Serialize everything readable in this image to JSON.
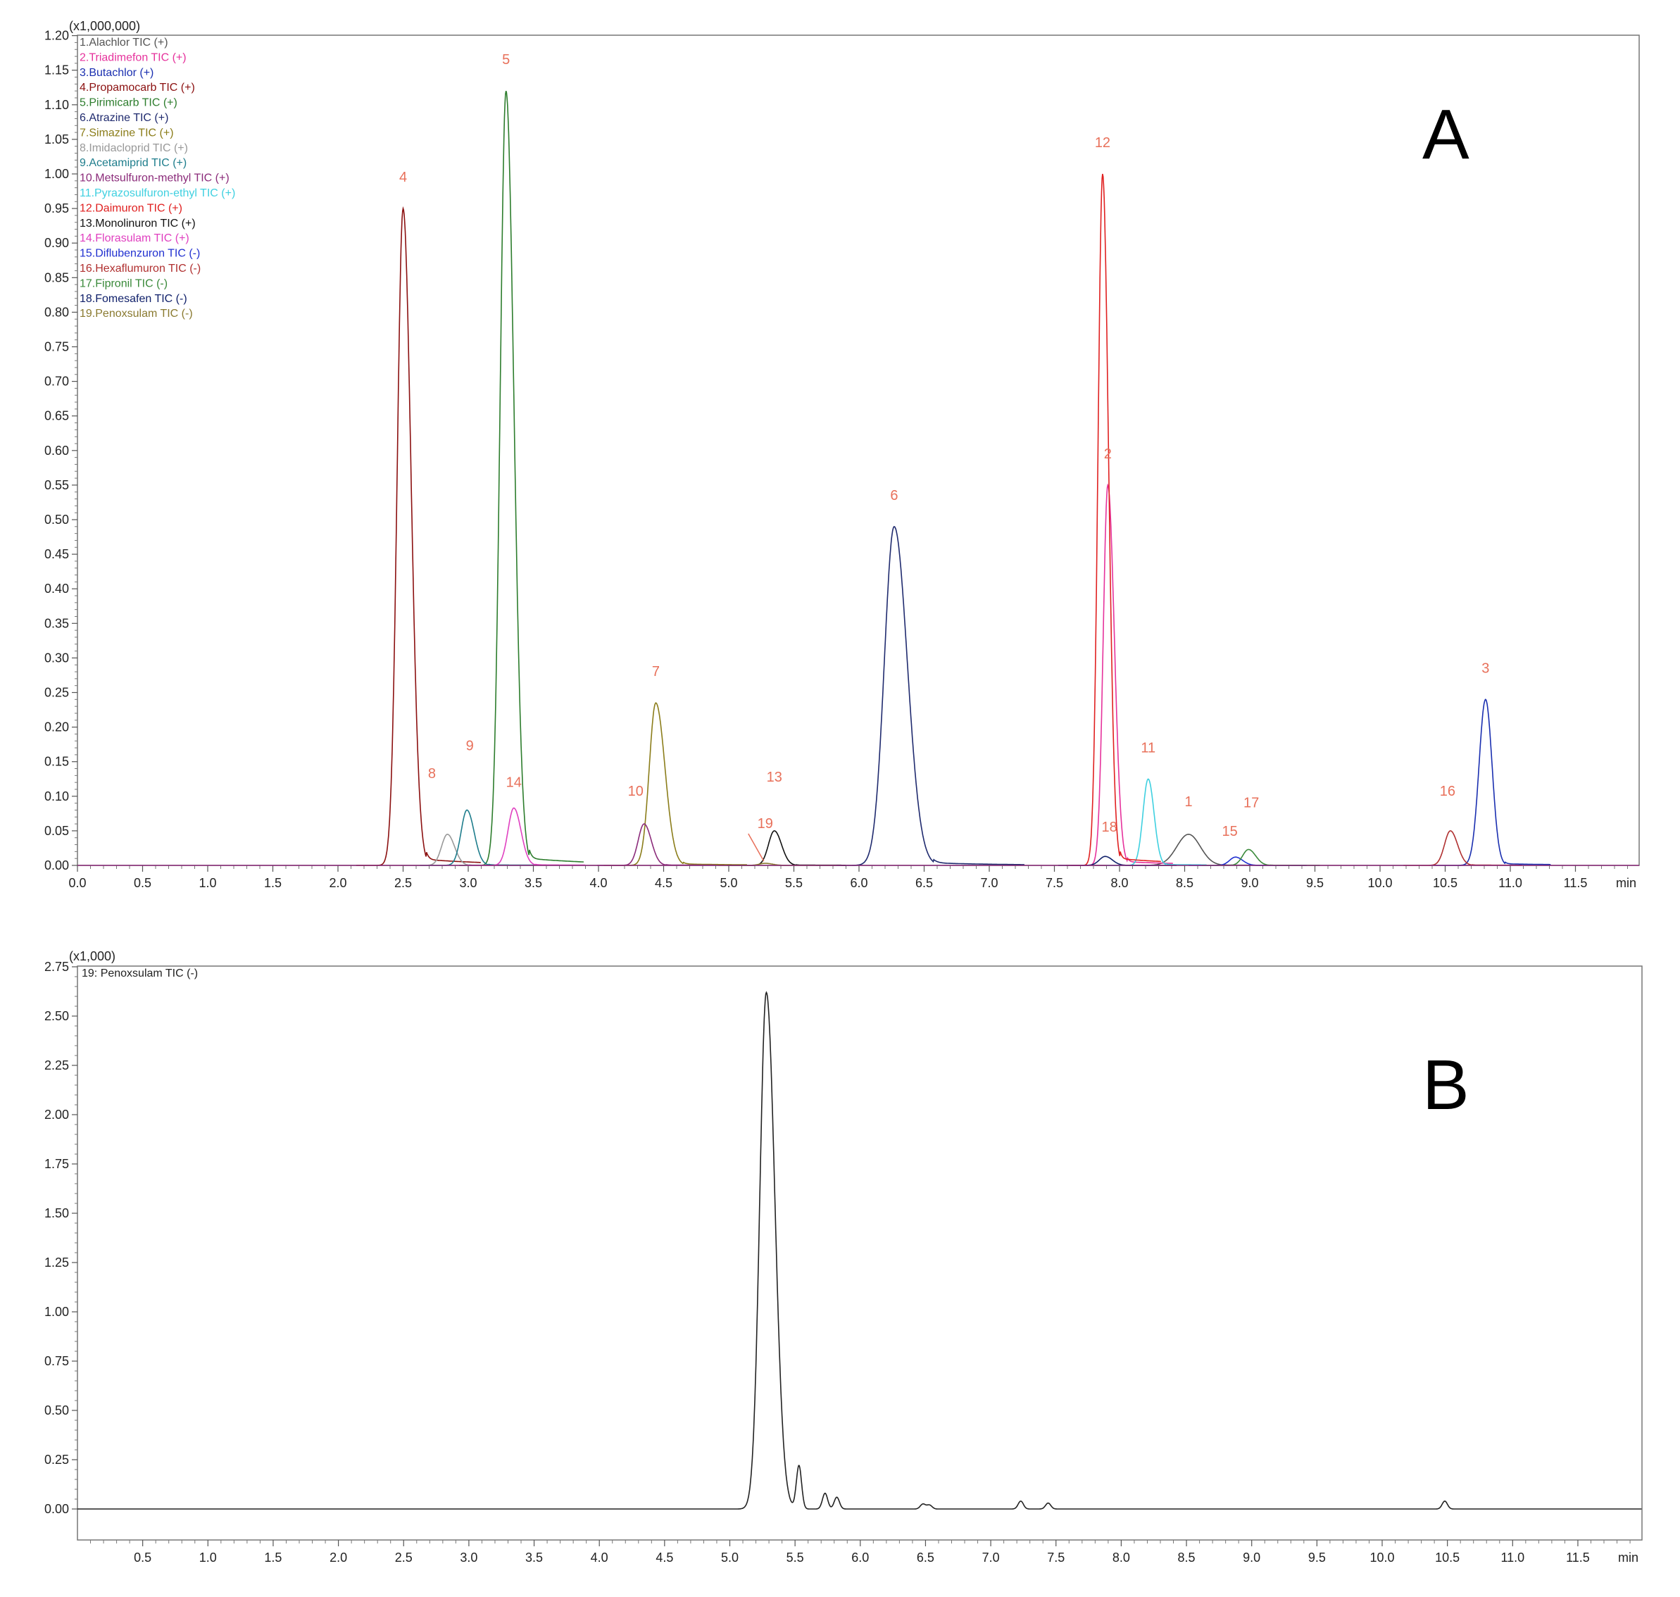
{
  "panels": [
    {
      "letter": "A",
      "multiplier": "(x1,000,000)",
      "x_unit": "min",
      "legend": [
        {
          "text": "1.Alachlor TIC (+)",
          "color": "#555555"
        },
        {
          "text": "2.Triadimefon TIC (+)",
          "color": "#e6329c"
        },
        {
          "text": "3.Butachlor  (+)",
          "color": "#1a2fb0"
        },
        {
          "text": "4.Propamocarb TIC (+)",
          "color": "#8b1010"
        },
        {
          "text": "5.Pirimicarb TIC (+)",
          "color": "#2d7d2d"
        },
        {
          "text": "6.Atrazine TIC (+)",
          "color": "#1f2a6e"
        },
        {
          "text": "7.Simazine TIC (+)",
          "color": "#8b7d1a"
        },
        {
          "text": "8.Imidacloprid TIC (+)",
          "color": "#999999"
        },
        {
          "text": "9.Acetamiprid TIC (+)",
          "color": "#1e7d8c"
        },
        {
          "text": "10.Metsulfuron-methyl TIC (+)",
          "color": "#8b2b7a"
        },
        {
          "text": "11.Pyrazosulfuron-ethyl TIC (+)",
          "color": "#3fd0e0"
        },
        {
          "text": "12.Daimuron TIC (+)",
          "color": "#e02020"
        },
        {
          "text": "13.Monolinuron TIC (+)",
          "color": "#111111"
        },
        {
          "text": "14.Florasulam TIC (+)",
          "color": "#e040c0"
        },
        {
          "text": "15.Diflubenzuron TIC (-)",
          "color": "#2030d0"
        },
        {
          "text": "16.Hexaflumuron TIC (-)",
          "color": "#b03030"
        },
        {
          "text": "17.Fipronil TIC (-)",
          "color": "#3a8a3a"
        },
        {
          "text": "18.Fomesafen TIC (-)",
          "color": "#10206a"
        },
        {
          "text": "19.Penoxsulam TIC (-)",
          "color": "#8a7a30"
        }
      ]
    },
    {
      "letter": "B",
      "multiplier": "(x1,000)",
      "x_unit": "min",
      "legend": [
        {
          "text": "19: Penoxsulam TIC (-)",
          "color": "#222222"
        }
      ]
    }
  ],
  "chart_data": [
    {
      "type": "line",
      "title": "A",
      "xlabel": "min",
      "ylabel": "(x1,000,000)",
      "xlim": [
        0,
        12.0
      ],
      "ylim": [
        0,
        1.2
      ],
      "x_ticks": [
        "0.0",
        "0.5",
        "1.0",
        "1.5",
        "2.0",
        "2.5",
        "3.0",
        "3.5",
        "4.0",
        "4.5",
        "5.0",
        "5.5",
        "6.0",
        "6.5",
        "7.0",
        "7.5",
        "8.0",
        "8.5",
        "9.0",
        "9.5",
        "10.0",
        "10.5",
        "11.0",
        "11.5"
      ],
      "y_ticks": [
        "0.00",
        "0.05",
        "0.10",
        "0.15",
        "0.20",
        "0.25",
        "0.30",
        "0.35",
        "0.40",
        "0.45",
        "0.50",
        "0.55",
        "0.60",
        "0.65",
        "0.70",
        "0.75",
        "0.80",
        "0.85",
        "0.90",
        "0.95",
        "1.00",
        "1.05",
        "1.10",
        "1.15",
        "1.20"
      ],
      "peaks": [
        {
          "id": "1",
          "rt": 8.53,
          "height": 0.045,
          "color": "#555555",
          "label_color": "#e8705a"
        },
        {
          "id": "2",
          "rt": 7.91,
          "height": 0.55,
          "color": "#e6329c",
          "label_color": "#e8705a"
        },
        {
          "id": "3",
          "rt": 10.81,
          "height": 0.24,
          "color": "#1a2fb0",
          "label_color": "#e8705a"
        },
        {
          "id": "4",
          "rt": 2.5,
          "height": 0.95,
          "color": "#8b1010",
          "label_color": "#e8705a"
        },
        {
          "id": "5",
          "rt": 3.29,
          "height": 1.12,
          "color": "#2d7d2d",
          "label_color": "#e8705a"
        },
        {
          "id": "6",
          "rt": 6.27,
          "height": 0.49,
          "color": "#1f2a6e",
          "label_color": "#e8705a"
        },
        {
          "id": "7",
          "rt": 4.44,
          "height": 0.235,
          "color": "#8b7d1a",
          "label_color": "#e8705a"
        },
        {
          "id": "8",
          "rt": 2.84,
          "height": 0.045,
          "color": "#999999",
          "label_color": "#e8705a"
        },
        {
          "id": "9",
          "rt": 2.99,
          "height": 0.08,
          "color": "#1e7d8c",
          "label_color": "#e8705a"
        },
        {
          "id": "10",
          "rt": 4.35,
          "height": 0.06,
          "color": "#8b2b7a",
          "label_color": "#e8705a"
        },
        {
          "id": "11",
          "rt": 8.22,
          "height": 0.125,
          "color": "#3fd0e0",
          "label_color": "#e8705a"
        },
        {
          "id": "12",
          "rt": 7.87,
          "height": 1.0,
          "color": "#e02020",
          "label_color": "#e8705a"
        },
        {
          "id": "13",
          "rt": 5.35,
          "height": 0.05,
          "color": "#111111",
          "label_color": "#e8705a"
        },
        {
          "id": "14",
          "rt": 3.35,
          "height": 0.083,
          "color": "#e040c0",
          "label_color": "#e8705a"
        },
        {
          "id": "15",
          "rt": 8.89,
          "height": 0.012,
          "color": "#2030d0",
          "label_color": "#e8705a"
        },
        {
          "id": "16",
          "rt": 10.54,
          "height": 0.05,
          "color": "#b03030",
          "label_color": "#e8705a"
        },
        {
          "id": "17",
          "rt": 8.99,
          "height": 0.023,
          "color": "#3a8a3a",
          "label_color": "#e8705a"
        },
        {
          "id": "18",
          "rt": 7.89,
          "height": 0.013,
          "color": "#10206a",
          "label_color": "#e8705a"
        },
        {
          "id": "19",
          "rt": 5.28,
          "height": 0.003,
          "color": "#8a7a30",
          "label_color": "#e8705a"
        }
      ]
    },
    {
      "type": "line",
      "title": "B",
      "xlabel": "min",
      "ylabel": "(x1,000)",
      "xlim": [
        0,
        12.0
      ],
      "ylim": [
        -0.1,
        2.75
      ],
      "x_ticks": [
        "0.5",
        "1.0",
        "1.5",
        "2.0",
        "2.5",
        "3.0",
        "3.5",
        "4.0",
        "4.5",
        "5.0",
        "5.5",
        "6.0",
        "6.5",
        "7.0",
        "7.5",
        "8.0",
        "8.5",
        "9.0",
        "9.5",
        "10.0",
        "10.5",
        "11.0",
        "11.5"
      ],
      "y_ticks": [
        "0.00",
        "0.25",
        "0.50",
        "0.75",
        "1.00",
        "1.25",
        "1.50",
        "1.75",
        "2.00",
        "2.25",
        "2.50",
        "2.75"
      ],
      "series": [
        {
          "name": "19: Penoxsulam TIC (-)",
          "peaks": [
            {
              "rt": 5.28,
              "height": 2.62
            },
            {
              "rt": 5.53,
              "height": 0.22
            },
            {
              "rt": 5.73,
              "height": 0.08
            },
            {
              "rt": 5.82,
              "height": 0.06
            },
            {
              "rt": 6.48,
              "height": 0.025
            },
            {
              "rt": 6.53,
              "height": 0.02
            },
            {
              "rt": 7.23,
              "height": 0.04
            },
            {
              "rt": 7.44,
              "height": 0.03
            },
            {
              "rt": 10.48,
              "height": 0.04
            }
          ]
        }
      ]
    }
  ]
}
